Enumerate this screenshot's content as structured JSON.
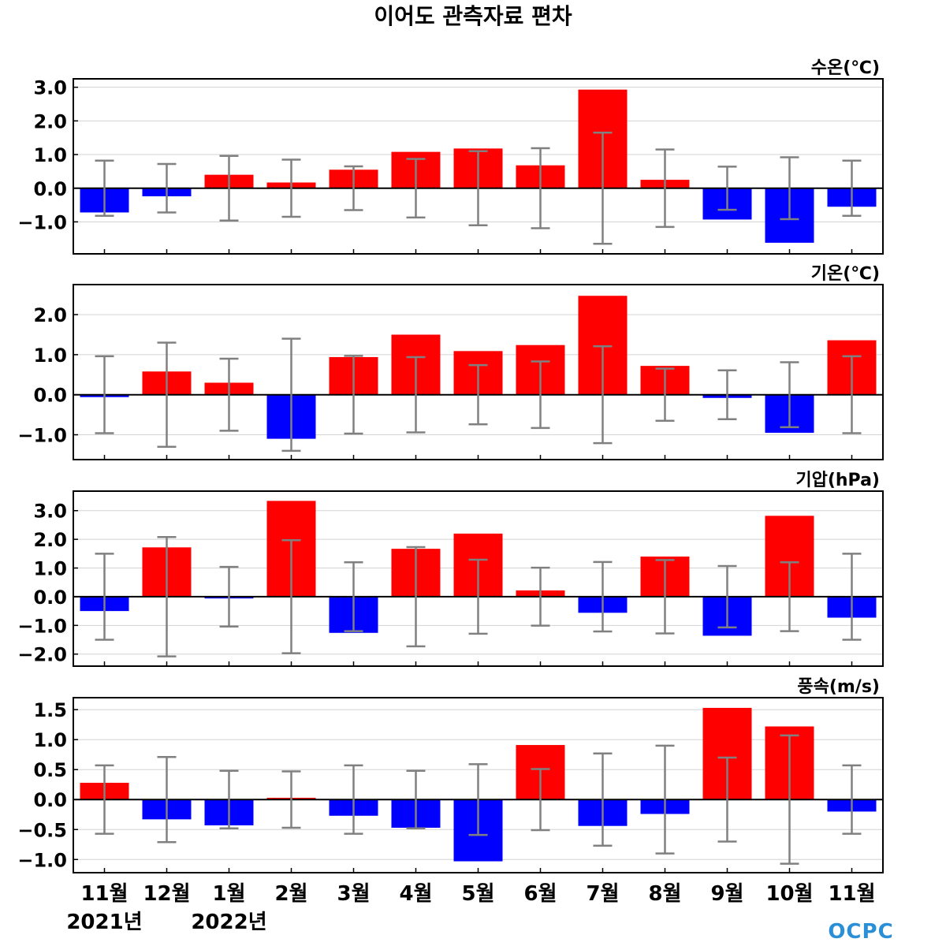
{
  "title": "이어도 관측자료 편차",
  "colors": {
    "positive": "#ff0000",
    "negative": "#0000ff",
    "error_bar": "#808080",
    "grid": "#d3d3d3",
    "logo": "#2a8fd6"
  },
  "x_labels": [
    "11월",
    "12월",
    "1월",
    "2월",
    "3월",
    "4월",
    "5월",
    "6월",
    "7월",
    "8월",
    "9월",
    "10월",
    "11월"
  ],
  "year_labels": [
    {
      "text": "2021년",
      "category_index": 0
    },
    {
      "text": "2022년",
      "category_index": 2
    }
  ],
  "logo": "OCPC",
  "chart_data": [
    {
      "type": "bar",
      "title": "수온(℃)",
      "unit": "수온(℃)",
      "ylim": [
        -1.95,
        3.25
      ],
      "yticks": [
        3.0,
        2.0,
        1.0,
        0.0,
        -1.0
      ],
      "ytick_labels": [
        "3.0",
        "2.0",
        "1.0",
        "0.0",
        "−1.0"
      ],
      "values": [
        -0.72,
        -0.24,
        0.4,
        0.17,
        0.55,
        1.08,
        1.18,
        0.68,
        2.93,
        0.25,
        -0.93,
        -1.62,
        -0.55
      ],
      "error": [
        0.82,
        0.72,
        0.96,
        0.85,
        0.65,
        0.87,
        1.1,
        1.19,
        1.65,
        1.15,
        0.64,
        0.92,
        0.82
      ]
    },
    {
      "type": "bar",
      "title": "기온(℃)",
      "unit": "기온(℃)",
      "ylim": [
        -1.62,
        2.75
      ],
      "yticks": [
        2.0,
        1.0,
        0.0,
        -1.0
      ],
      "ytick_labels": [
        "2.0",
        "1.0",
        "0.0",
        "−1.0"
      ],
      "values": [
        -0.06,
        0.58,
        0.3,
        -1.1,
        0.94,
        1.5,
        1.09,
        1.24,
        2.47,
        0.72,
        -0.08,
        -0.95,
        1.36
      ],
      "error": [
        0.96,
        1.3,
        0.9,
        1.4,
        0.97,
        0.94,
        0.74,
        0.83,
        1.21,
        0.65,
        0.61,
        0.81,
        0.96
      ]
    },
    {
      "type": "bar",
      "title": "기압(hPa)",
      "unit": "기압(hPa)",
      "ylim": [
        -2.42,
        3.68
      ],
      "yticks": [
        3.0,
        2.0,
        1.0,
        0.0,
        -1.0,
        -2.0
      ],
      "ytick_labels": [
        "3.0",
        "2.0",
        "1.0",
        "0.0",
        "−1.0",
        "−2.0"
      ],
      "values": [
        -0.5,
        1.72,
        -0.06,
        3.34,
        -1.26,
        1.67,
        2.2,
        0.22,
        -0.56,
        1.4,
        -1.36,
        2.82,
        -0.73
      ],
      "error": [
        1.5,
        2.08,
        1.04,
        1.97,
        1.2,
        1.73,
        1.29,
        1.01,
        1.21,
        1.28,
        1.07,
        1.2,
        1.5
      ]
    },
    {
      "type": "bar",
      "title": "풍속(m/s)",
      "unit": "풍속(m/s)",
      "ylim": [
        -1.22,
        1.7
      ],
      "yticks": [
        1.5,
        1.0,
        0.5,
        0.0,
        -0.5,
        -1.0
      ],
      "ytick_labels": [
        "1.5",
        "1.0",
        "0.5",
        "0.0",
        "−0.5",
        "−1.0"
      ],
      "values": [
        0.28,
        -0.33,
        -0.43,
        0.03,
        -0.27,
        -0.47,
        -1.03,
        0.91,
        -0.44,
        -0.24,
        1.53,
        1.22,
        -0.2
      ],
      "error": [
        0.57,
        0.71,
        0.48,
        0.47,
        0.57,
        0.48,
        0.59,
        0.51,
        0.77,
        0.9,
        0.7,
        1.07,
        0.57
      ]
    }
  ]
}
